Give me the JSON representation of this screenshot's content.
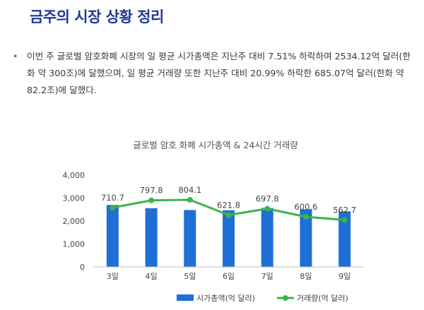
{
  "heading": "금주의 시장 상황 정리",
  "summary": {
    "bullet": "•",
    "text": "이번 주 글로벌 암호화폐 시장의 일 평균 시가총액은 지난주 대비 7.51% 하락하여 2534.12억 달러(한화 약 300조)에 달했으며, 일 평균 거래량 또한 지난주 대비 20.99% 하락한 685.07억 달러(한화 약 82.2조)에 달했다."
  },
  "colors": {
    "heading": "#1f3a93",
    "bar": "#1f6fd6",
    "line": "#3cb44b"
  },
  "chart_data": {
    "type": "bar",
    "title": "글로벌 암호 화폐 시가총액 & 24시간 거래량",
    "categories": [
      "3일",
      "4일",
      "5일",
      "6일",
      "7일",
      "8일",
      "9일"
    ],
    "ylim": [
      0,
      4000
    ],
    "yticks": [
      0,
      1000,
      2000,
      3000,
      4000
    ],
    "ytick_labels": [
      "0",
      "1,000",
      "2,000",
      "3,000",
      "4,000"
    ],
    "legend_position": "bottom",
    "grid": false,
    "series": [
      {
        "name": "시가총액(억 달러)",
        "kind": "bar",
        "values": [
          2700,
          2560,
          2480,
          2470,
          2570,
          2510,
          2420
        ]
      },
      {
        "name": "거래량(억 달러)",
        "kind": "line",
        "axis": "secondary",
        "ylim": [
          0,
          1100
        ],
        "values": [
          710.7,
          797.8,
          804.1,
          621.8,
          697.8,
          600.6,
          562.7
        ],
        "data_labels": [
          "710.7",
          "797.8",
          "804.1",
          "621.8",
          "697.8",
          "600.6",
          "562.7"
        ]
      }
    ]
  }
}
